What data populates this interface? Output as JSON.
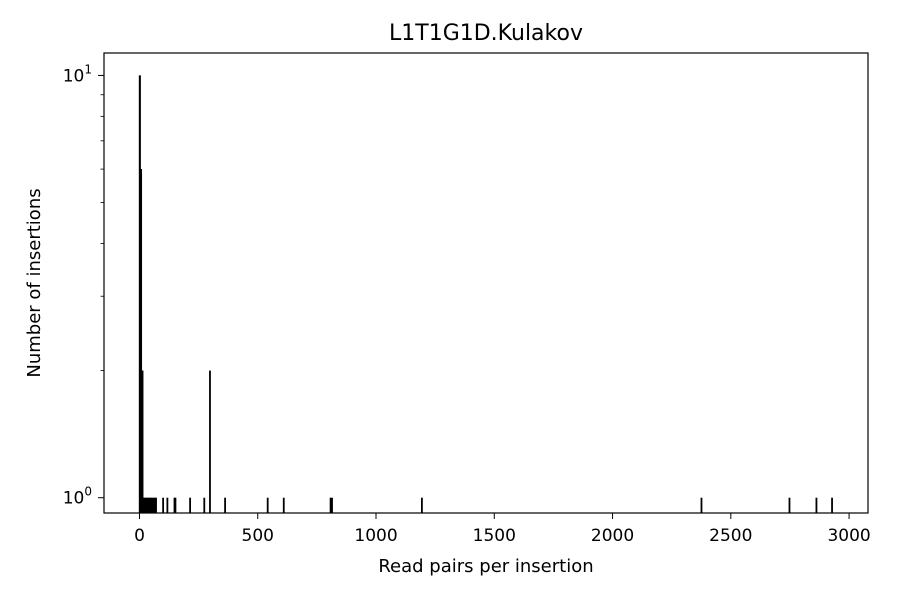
{
  "chart_data": {
    "type": "bar",
    "title": "L1T1G1D.Kulakov",
    "xlabel": "Read pairs per insertion",
    "ylabel": "Number of insertions",
    "xlim": [
      -150,
      3080
    ],
    "ylim": [
      0.92,
      11.3
    ],
    "yscale": "log",
    "grid": false,
    "x_ticks": [
      0,
      500,
      1000,
      1500,
      2000,
      2500,
      3000
    ],
    "x_tick_labels": [
      "0",
      "500",
      "1000",
      "1500",
      "2000",
      "2500",
      "3000"
    ],
    "y_ticks": [
      {
        "value": 1,
        "base": "10",
        "exp": "0"
      },
      {
        "value": 10,
        "base": "10",
        "exp": "1"
      }
    ],
    "bars": [
      {
        "x": 1,
        "y": 10
      },
      {
        "x": 2,
        "y": 10
      },
      {
        "x": 5,
        "y": 6
      },
      {
        "x": 7,
        "y": 6
      },
      {
        "x": 10,
        "y": 2
      },
      {
        "x": 13,
        "y": 2
      },
      {
        "x": 16,
        "y": 1
      },
      {
        "x": 20,
        "y": 1
      },
      {
        "x": 25,
        "y": 1
      },
      {
        "x": 30,
        "y": 1
      },
      {
        "x": 35,
        "y": 1
      },
      {
        "x": 40,
        "y": 1
      },
      {
        "x": 45,
        "y": 1
      },
      {
        "x": 50,
        "y": 1
      },
      {
        "x": 55,
        "y": 1
      },
      {
        "x": 60,
        "y": 1
      },
      {
        "x": 65,
        "y": 1
      },
      {
        "x": 70,
        "y": 1
      },
      {
        "x": 100,
        "y": 1
      },
      {
        "x": 118,
        "y": 1
      },
      {
        "x": 148,
        "y": 1
      },
      {
        "x": 152,
        "y": 1
      },
      {
        "x": 214,
        "y": 1
      },
      {
        "x": 274,
        "y": 1
      },
      {
        "x": 298,
        "y": 2
      },
      {
        "x": 362,
        "y": 1
      },
      {
        "x": 542,
        "y": 1
      },
      {
        "x": 610,
        "y": 1
      },
      {
        "x": 808,
        "y": 1
      },
      {
        "x": 814,
        "y": 1
      },
      {
        "x": 1194,
        "y": 1
      },
      {
        "x": 2376,
        "y": 1
      },
      {
        "x": 2748,
        "y": 1
      },
      {
        "x": 2862,
        "y": 1
      },
      {
        "x": 2928,
        "y": 1
      }
    ]
  }
}
